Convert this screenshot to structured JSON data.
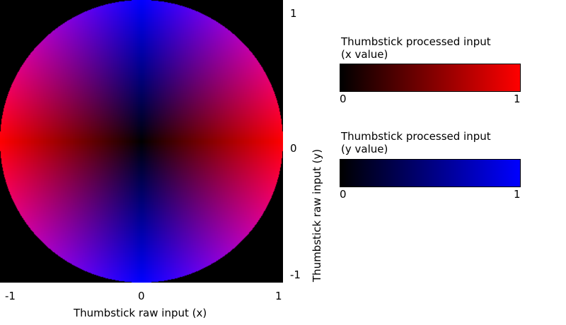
{
  "plot": {
    "x_axis_label": "Thumbstick raw input (x)",
    "y_axis_label": "Thumbstick raw input (y)",
    "x_ticks": [
      "-1",
      "0",
      "1"
    ],
    "y_ticks": [
      "1",
      "0",
      "-1"
    ]
  },
  "legend": {
    "x": {
      "title_line1": "Thumbstick processed input",
      "title_line2": "(x value)",
      "min_label": "0",
      "max_label": "1",
      "color": "#ff0000"
    },
    "y": {
      "title_line1": "Thumbstick processed input",
      "title_line2": "(y value)",
      "min_label": "0",
      "max_label": "1",
      "color": "#0000ff"
    }
  },
  "colors": {
    "background": "#000000",
    "x_channel": "#ff0000",
    "y_channel": "#0000ff"
  }
}
